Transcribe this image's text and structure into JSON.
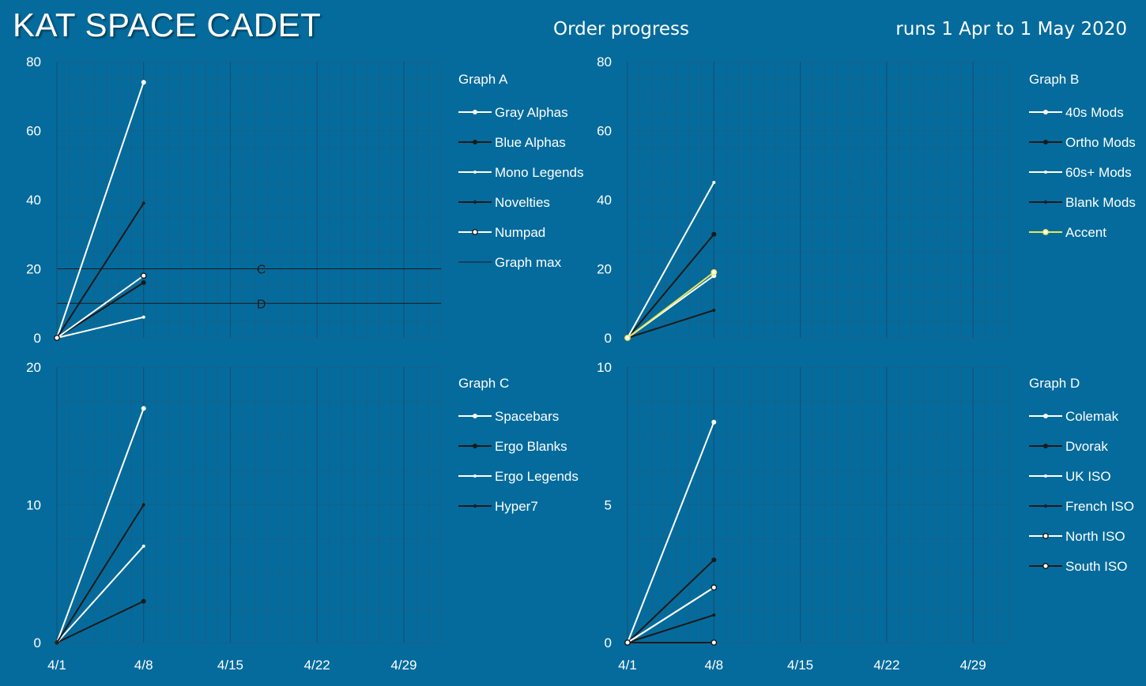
{
  "header": {
    "title": "KAT SPACE CADET",
    "subtitle": "Order progress",
    "runs": "runs 1 Apr to 1 May 2020"
  },
  "colors": {
    "background": "#056b9c",
    "grid": "#1c5f86",
    "white": "#ffffff",
    "dark": "#1a1a1a",
    "accent": "#e8e85a"
  },
  "chart_data": [
    {
      "id": "A",
      "type": "line",
      "legend_title": "Graph A",
      "x_ticks": [
        "4/1",
        "4/8",
        "4/15",
        "4/22",
        "4/29"
      ],
      "x": [
        "4/1",
        "4/8"
      ],
      "ylim": [
        0,
        80
      ],
      "y_ticks": [
        0,
        20,
        40,
        60,
        80
      ],
      "series": [
        {
          "name": "Gray Alphas",
          "color": "#ffffff",
          "marker": "dot",
          "values": [
            0,
            74
          ]
        },
        {
          "name": "Blue Alphas",
          "color": "#1a1a1a",
          "marker": "dot",
          "values": [
            0,
            16
          ]
        },
        {
          "name": "Mono Legends",
          "color": "#ffffff",
          "marker": "small",
          "values": [
            0,
            6
          ]
        },
        {
          "name": "Novelties",
          "color": "#1a1a1a",
          "marker": "small",
          "values": [
            0,
            39
          ]
        },
        {
          "name": "Numpad",
          "color": "#ffffff",
          "marker": "ring",
          "values": [
            0,
            18
          ]
        }
      ],
      "reference_lines": [
        {
          "value": 20,
          "label": "C"
        },
        {
          "value": 10,
          "label": "D"
        }
      ],
      "reference_legend": "Graph max"
    },
    {
      "id": "B",
      "type": "line",
      "legend_title": "Graph B",
      "x_ticks": [
        "4/1",
        "4/8",
        "4/15",
        "4/22",
        "4/29"
      ],
      "x": [
        "4/1",
        "4/8"
      ],
      "ylim": [
        0,
        80
      ],
      "y_ticks": [
        0,
        20,
        40,
        60,
        80
      ],
      "series": [
        {
          "name": "40s Mods",
          "color": "#ffffff",
          "marker": "dot",
          "values": [
            0,
            18
          ]
        },
        {
          "name": "Ortho Mods",
          "color": "#1a1a1a",
          "marker": "dot",
          "values": [
            0,
            30
          ]
        },
        {
          "name": "60s+ Mods",
          "color": "#ffffff",
          "marker": "small",
          "values": [
            0,
            45
          ]
        },
        {
          "name": "Blank Mods",
          "color": "#1a1a1a",
          "marker": "small",
          "values": [
            0,
            8
          ]
        },
        {
          "name": "Accent",
          "color": "#e8e85a",
          "marker": "ring",
          "values": [
            0,
            19
          ]
        }
      ]
    },
    {
      "id": "C",
      "type": "line",
      "legend_title": "Graph C",
      "x_ticks": [
        "4/1",
        "4/8",
        "4/15",
        "4/22",
        "4/29"
      ],
      "x": [
        "4/1",
        "4/8"
      ],
      "ylim": [
        0,
        20
      ],
      "y_ticks": [
        0,
        10,
        20
      ],
      "series": [
        {
          "name": "Spacebars",
          "color": "#ffffff",
          "marker": "dot",
          "values": [
            0,
            17
          ]
        },
        {
          "name": "Ergo Blanks",
          "color": "#1a1a1a",
          "marker": "dot",
          "values": [
            0,
            3
          ]
        },
        {
          "name": "Ergo Legends",
          "color": "#ffffff",
          "marker": "small",
          "values": [
            0,
            7
          ]
        },
        {
          "name": "Hyper7",
          "color": "#1a1a1a",
          "marker": "small",
          "values": [
            0,
            10
          ]
        }
      ]
    },
    {
      "id": "D",
      "type": "line",
      "legend_title": "Graph D",
      "x_ticks": [
        "4/1",
        "4/8",
        "4/15",
        "4/22",
        "4/29"
      ],
      "x": [
        "4/1",
        "4/8"
      ],
      "ylim": [
        0,
        10
      ],
      "y_ticks": [
        0,
        5,
        10
      ],
      "series": [
        {
          "name": "Colemak",
          "color": "#ffffff",
          "marker": "dot",
          "values": [
            0,
            8
          ]
        },
        {
          "name": "Dvorak",
          "color": "#1a1a1a",
          "marker": "dot",
          "values": [
            0,
            3
          ]
        },
        {
          "name": "UK ISO",
          "color": "#ffffff",
          "marker": "small",
          "values": [
            0,
            2
          ]
        },
        {
          "name": "French ISO",
          "color": "#1a1a1a",
          "marker": "small",
          "values": [
            0,
            1
          ]
        },
        {
          "name": "North ISO",
          "color": "#ffffff",
          "marker": "ring",
          "values": [
            0,
            2
          ]
        },
        {
          "name": "South ISO",
          "color": "#1a1a1a",
          "marker": "ring",
          "values": [
            0,
            0
          ]
        }
      ]
    }
  ]
}
